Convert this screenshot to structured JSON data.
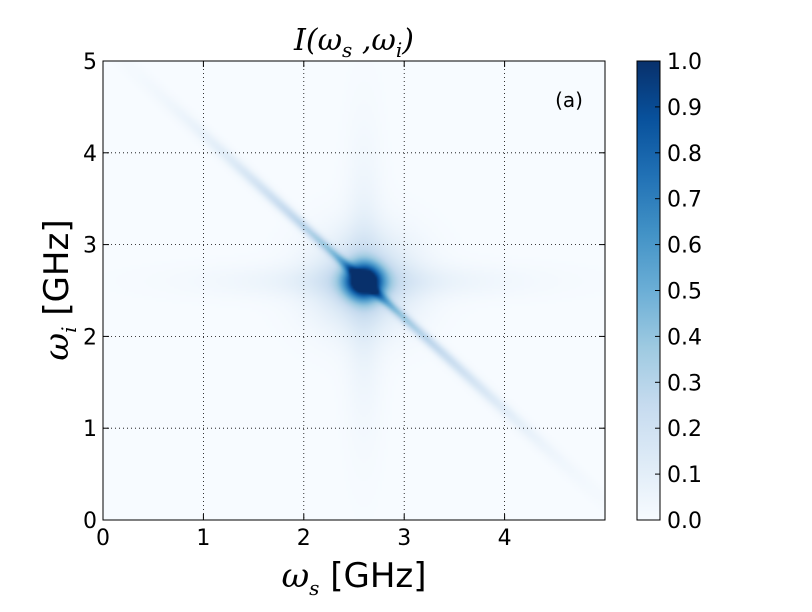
{
  "chart_data": {
    "type": "heatmap",
    "title": {
      "main": "I(",
      "omega_s": "ω",
      "sub_s": "s",
      "comma": " ,",
      "omega_i": "ω",
      "sub_i": "i",
      "close": ")"
    },
    "xlabel": {
      "symbol": "ω",
      "sub": "s",
      "unit": " [GHz]"
    },
    "ylabel": {
      "symbol": "ω",
      "sub": "i",
      "unit": " [GHz]"
    },
    "panel_label": "(a)",
    "xlim": [
      0,
      5
    ],
    "ylim": [
      0,
      5
    ],
    "xticks": [
      0,
      1,
      2,
      3,
      4
    ],
    "xtick_labels": [
      "0",
      "1",
      "2",
      "3",
      "4"
    ],
    "yticks": [
      0,
      1,
      2,
      3,
      4,
      5
    ],
    "ytick_labels": [
      "0",
      "1",
      "2",
      "3",
      "4",
      "5"
    ],
    "grid": true,
    "grid_style": "dotted",
    "colormap": "Blues",
    "color_low": "#f7fbff",
    "color_high": "#08306b",
    "colorbar": {
      "range": [
        0.0,
        1.0
      ],
      "ticks": [
        0.0,
        0.1,
        0.2,
        0.3,
        0.4,
        0.5,
        0.6,
        0.7,
        0.8,
        0.9,
        1.0
      ],
      "tick_labels": [
        "0.0",
        "0.1",
        "0.2",
        "0.3",
        "0.4",
        "0.5",
        "0.6",
        "0.7",
        "0.8",
        "0.9",
        "1.0"
      ],
      "placement": "right"
    },
    "features": {
      "peak": {
        "omega_s": 2.6,
        "omega_i": 2.6,
        "intensity": 1.0
      },
      "anti_diagonal_band": {
        "omega_s_plus_omega_i": 5.2,
        "peak_intensity": 0.35
      }
    }
  }
}
